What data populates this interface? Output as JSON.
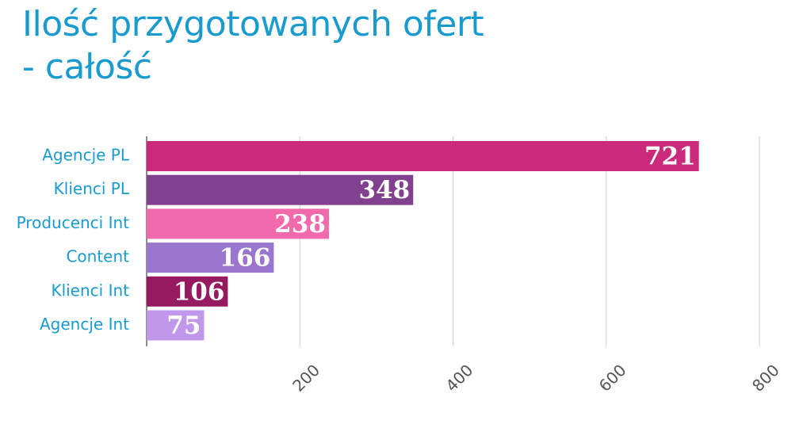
{
  "title_line1": "Ilość przygotowanych ofert",
  "title_line2": "- całość",
  "chart_data": {
    "type": "bar",
    "orientation": "horizontal",
    "categories": [
      "Agencje PL",
      "Klienci PL",
      "Producenci Int",
      "Content",
      "Klienci Int",
      "Agencje Int"
    ],
    "values": [
      721,
      348,
      238,
      166,
      106,
      75
    ],
    "colors": [
      "#cb2a7b",
      "#82418f",
      "#f06aac",
      "#9a76cf",
      "#951a5f",
      "#c198e9"
    ],
    "xticks": [
      200,
      400,
      600,
      800
    ],
    "xlim": [
      0,
      800
    ],
    "grid": true,
    "data_labels": [
      "721",
      "348",
      "238",
      "166",
      "106",
      "75"
    ]
  }
}
